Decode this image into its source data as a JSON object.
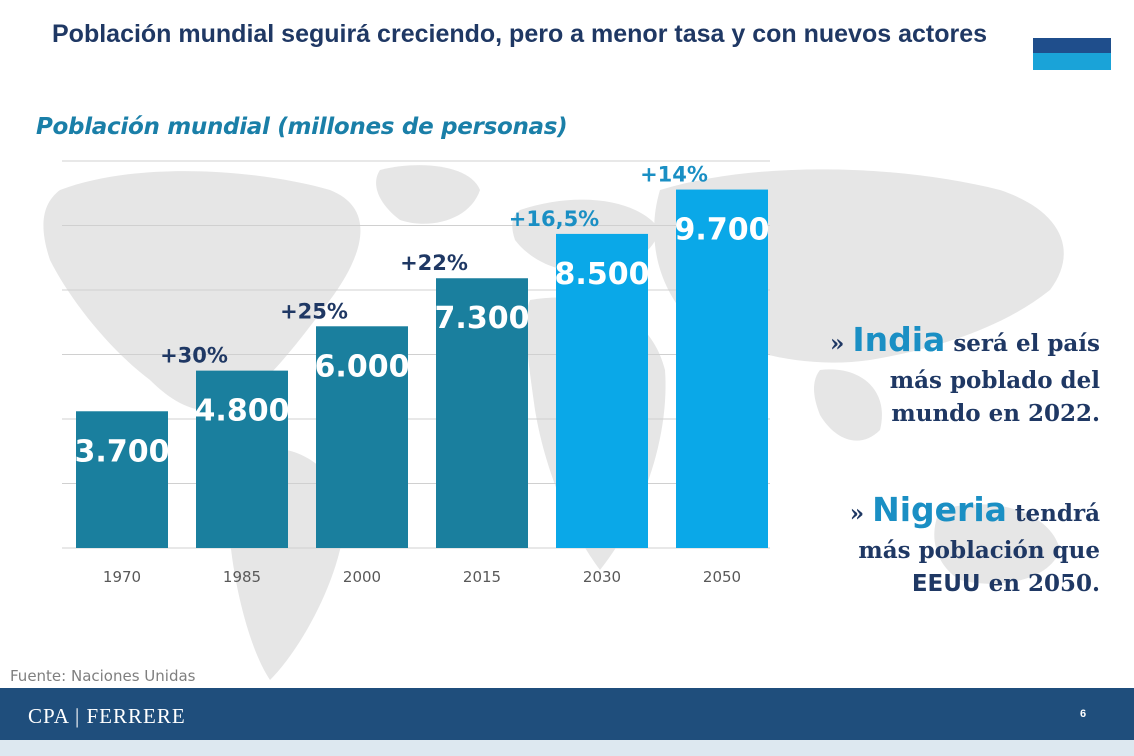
{
  "header": {
    "title": "Población mundial seguirá creciendo, pero a menor tasa y con nuevos actores",
    "subtitle": "Población mundial (millones de personas)"
  },
  "chart_data": {
    "type": "bar",
    "title": "Población mundial (millones de personas)",
    "categories": [
      "1970",
      "1985",
      "2000",
      "2015",
      "2030",
      "2050"
    ],
    "values": [
      3700,
      4800,
      6000,
      7300,
      8500,
      9700
    ],
    "value_labels": [
      "3.700",
      "4.800",
      "6.000",
      "7.300",
      "8.500",
      "9.700"
    ],
    "growth_labels": [
      "+30%",
      "+25%",
      "+22%",
      "+16,5%",
      "+14%"
    ],
    "bar_colors": [
      "#1a7f9e",
      "#1a7f9e",
      "#1a7f9e",
      "#1a7f9e",
      "#0aa8e8",
      "#0aa8e8"
    ],
    "growth_colors": [
      "#1f3864",
      "#1f3864",
      "#1f3864",
      "#1a8fc4",
      "#1a8fc4"
    ],
    "ylim": [
      0,
      10500
    ],
    "grid": true,
    "legend": "none"
  },
  "notes": {
    "note1": {
      "prefix": "» ",
      "highlight": "India",
      "rest1": " será el país",
      "line2": "más poblado del",
      "line3": "mundo en 2022."
    },
    "note2": {
      "prefix": "» ",
      "highlight": "Nigeria",
      "rest1": " tendrá",
      "line2": "más población que",
      "line3a": "EEUU",
      "line3b": " en 2050."
    }
  },
  "source": "Fuente: Naciones Unidas",
  "footer": {
    "brand": "CPA | FERRERE",
    "page": "6"
  }
}
